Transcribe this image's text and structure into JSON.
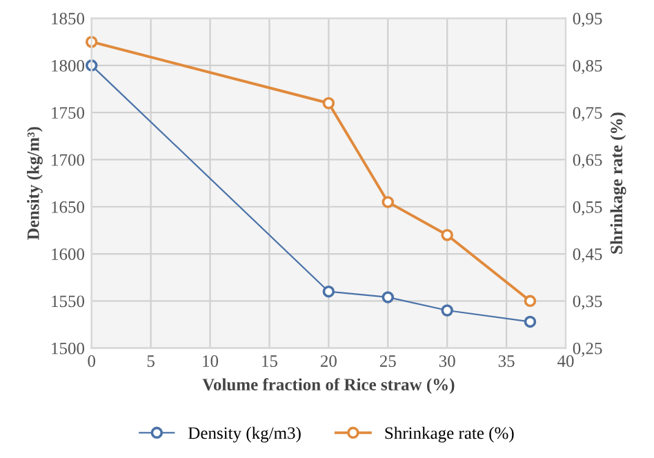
{
  "chart_data": {
    "type": "line",
    "xlabel": "Volume fraction of Rice straw (%)",
    "ylabel": "Density (kg/m³)",
    "y2label": "Shrinkage rate (%)",
    "x": [
      0,
      20,
      25,
      30,
      37
    ],
    "series": [
      {
        "name": "Density (kg/m3)",
        "color": "#4a72a8",
        "values": [
          1800,
          1560,
          1554,
          1540,
          1528
        ]
      },
      {
        "name": "Shrinkage rate (%)",
        "color": "#e08a3c",
        "values": [
          0.9,
          0.77,
          0.56,
          0.49,
          0.35
        ],
        "axis": "y2"
      }
    ],
    "xlim": [
      0,
      40
    ],
    "xticks": [
      0,
      5,
      10,
      15,
      20,
      25,
      30,
      35,
      40
    ],
    "ylim": [
      1500,
      1850
    ],
    "yticks": [
      1500,
      1550,
      1600,
      1650,
      1700,
      1750,
      1800,
      1850
    ],
    "y2lim": [
      0.25,
      0.95
    ],
    "y2ticks": [
      {
        "value": 0.25,
        "label": "0,25"
      },
      {
        "value": 0.35,
        "label": "0,35"
      },
      {
        "value": 0.45,
        "label": "0,45"
      },
      {
        "value": 0.55,
        "label": "0,55"
      },
      {
        "value": 0.65,
        "label": "0,65"
      },
      {
        "value": 0.75,
        "label": "0,75"
      },
      {
        "value": 0.85,
        "label": "0,85"
      },
      {
        "value": 0.95,
        "label": "0,95"
      }
    ],
    "grid": true,
    "legend": "bottom",
    "marker": "circle",
    "line_style": "solid"
  }
}
